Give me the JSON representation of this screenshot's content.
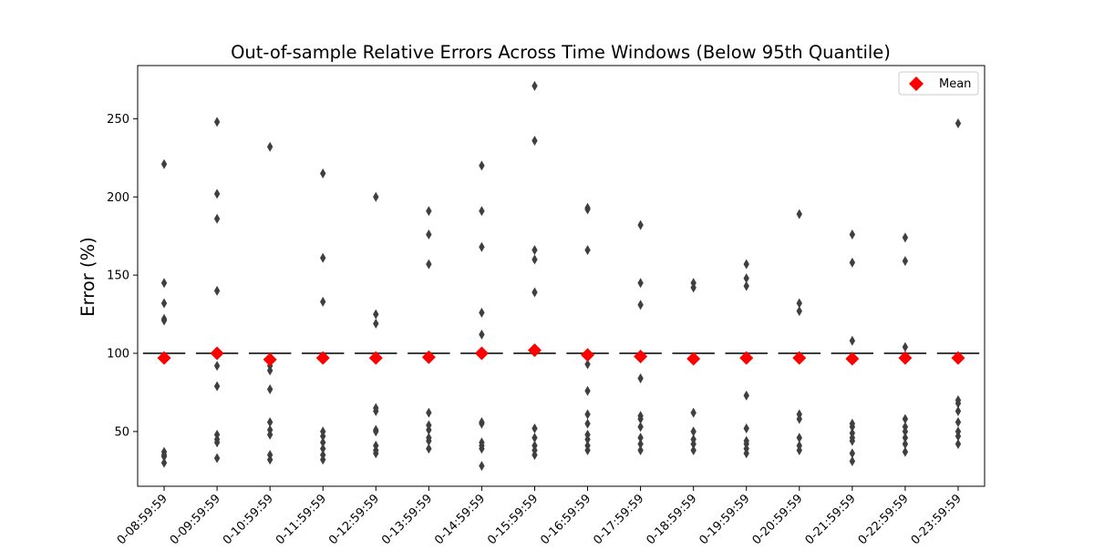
{
  "chart_data": {
    "type": "box",
    "title": "Out-of-sample Relative Errors Across Time Windows (Below 95th Quantile)",
    "xlabel": "",
    "ylabel": "Error (%)",
    "ylim": [
      15,
      284
    ],
    "yticks": [
      50,
      100,
      150,
      200,
      250
    ],
    "legend": {
      "label": "Mean",
      "position": "top-right",
      "marker": "red-diamond"
    },
    "colors": {
      "mean": "#ff0000",
      "box": "#3f3f3f",
      "outlier": "#3f3f3f"
    },
    "categories": [
      "0-08:59:59",
      "0-09:59:59",
      "0-10:59:59",
      "0-11:59:59",
      "0-12:59:59",
      "0-13:59:59",
      "0-14:59:59",
      "0-15:59:59",
      "0-16:59:59",
      "0-17:59:59",
      "0-18:59:59",
      "0-19:59:59",
      "0-20:59:59",
      "0-21:59:59",
      "0-22:59:59",
      "0-23:59:59"
    ],
    "median": [
      100,
      100,
      100,
      100,
      100,
      100,
      100,
      100,
      100,
      100,
      100,
      100,
      100,
      100,
      100,
      100
    ],
    "means": [
      97,
      100,
      96,
      97,
      97,
      97.5,
      100,
      102,
      99,
      98,
      96.5,
      97,
      97,
      96.5,
      97,
      97
    ],
    "outliers": [
      [
        221,
        145,
        132,
        122,
        121,
        37,
        35,
        34,
        30
      ],
      [
        248,
        202,
        186,
        140,
        100,
        92,
        79,
        48,
        45,
        43,
        33
      ],
      [
        232,
        92,
        89,
        77,
        56,
        51,
        48,
        35,
        32
      ],
      [
        215,
        161,
        133,
        50,
        47,
        43,
        39,
        35,
        32
      ],
      [
        200,
        125,
        119,
        65,
        63,
        51,
        50,
        41,
        38,
        36
      ],
      [
        191,
        176,
        157,
        62,
        54,
        51,
        46,
        44,
        39
      ],
      [
        220,
        191,
        168,
        126,
        112,
        56,
        55,
        43,
        41,
        39,
        28
      ],
      [
        271,
        236,
        166,
        160,
        139,
        102,
        52,
        46,
        41,
        38,
        35
      ],
      [
        193,
        192,
        166,
        93,
        76,
        61,
        55,
        48,
        45,
        41,
        38
      ],
      [
        182,
        145,
        131,
        84,
        60,
        58,
        53,
        46,
        42,
        38
      ],
      [
        145,
        142,
        62,
        50,
        45,
        42,
        38
      ],
      [
        157,
        148,
        143,
        73,
        52,
        44,
        42,
        39,
        36
      ],
      [
        189,
        132,
        127,
        61,
        58,
        46,
        41,
        38
      ],
      [
        176,
        158,
        108,
        55,
        53,
        49,
        46,
        44,
        36,
        31
      ],
      [
        174,
        159,
        104,
        58,
        53,
        50,
        46,
        42,
        37
      ],
      [
        247,
        70,
        68,
        63,
        56,
        50,
        47,
        42
      ]
    ]
  }
}
